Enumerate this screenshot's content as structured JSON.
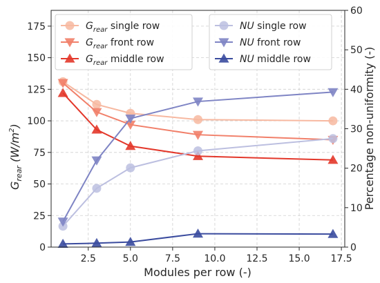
{
  "chart_data": {
    "type": "line",
    "x": [
      1,
      3,
      5,
      9,
      17
    ],
    "xlabel": "Modules per row (-)",
    "xlim": [
      0.3,
      17.7
    ],
    "xticks": [
      "2.5",
      "5.0",
      "7.5",
      "10.0",
      "12.5",
      "15.0",
      "17.5"
    ],
    "xtick_values": [
      2.5,
      5.0,
      7.5,
      10.0,
      12.5,
      15.0,
      17.5
    ],
    "ylabel_left_main": "G",
    "ylabel_left_sub": "rear",
    "ylabel_left_unit": " (W/m",
    "ylabel_left_sup": "2",
    "ylabel_left_close": ")",
    "ylim_left": [
      0,
      187.5
    ],
    "yticks_left": [
      "0",
      "25",
      "50",
      "75",
      "100",
      "125",
      "150",
      "175"
    ],
    "ytick_values_left": [
      0,
      25,
      50,
      75,
      100,
      125,
      150,
      175
    ],
    "ylabel_right": "Percentage non-uniformity (-)",
    "ylim_right": [
      0,
      60
    ],
    "yticks_right": [
      "0",
      "10",
      "20",
      "30",
      "40",
      "50",
      "60"
    ],
    "ytick_values_right": [
      0,
      10,
      20,
      30,
      40,
      50,
      60
    ],
    "grid": true,
    "legend_left": "top-left",
    "legend_right": "top-right",
    "series": [
      {
        "name": "single row",
        "name_prefix": "G",
        "name_sub": "rear",
        "axis": "left",
        "marker": "circle",
        "color": "#f7b8a0",
        "values": [
          131,
          113,
          106,
          101,
          100
        ]
      },
      {
        "name": "front row",
        "name_prefix": "G",
        "name_sub": "rear",
        "axis": "left",
        "marker": "triangle-down",
        "color": "#f17f69",
        "values": [
          130,
          107,
          97,
          89,
          85
        ]
      },
      {
        "name": "middle row",
        "name_prefix": "G",
        "name_sub": "rear",
        "axis": "left",
        "marker": "triangle-up",
        "color": "#e3372a",
        "values": [
          122,
          93,
          80,
          72,
          69
        ]
      },
      {
        "name": "single row",
        "name_prefix": "NU",
        "name_sub": "",
        "axis": "right",
        "marker": "circle",
        "color": "#bcbfe0",
        "values": [
          5.3,
          14.9,
          20.1,
          24.4,
          27.5
        ]
      },
      {
        "name": "front row",
        "name_prefix": "NU",
        "name_sub": "",
        "axis": "right",
        "marker": "triangle-down",
        "color": "#7e84c4",
        "values": [
          6.5,
          22.0,
          32.6,
          36.9,
          39.3
        ]
      },
      {
        "name": "middle row",
        "name_prefix": "NU",
        "name_sub": "",
        "axis": "right",
        "marker": "triangle-up",
        "color": "#3a4b9e",
        "values": [
          0.8,
          1.0,
          1.3,
          3.4,
          3.3
        ]
      }
    ]
  }
}
